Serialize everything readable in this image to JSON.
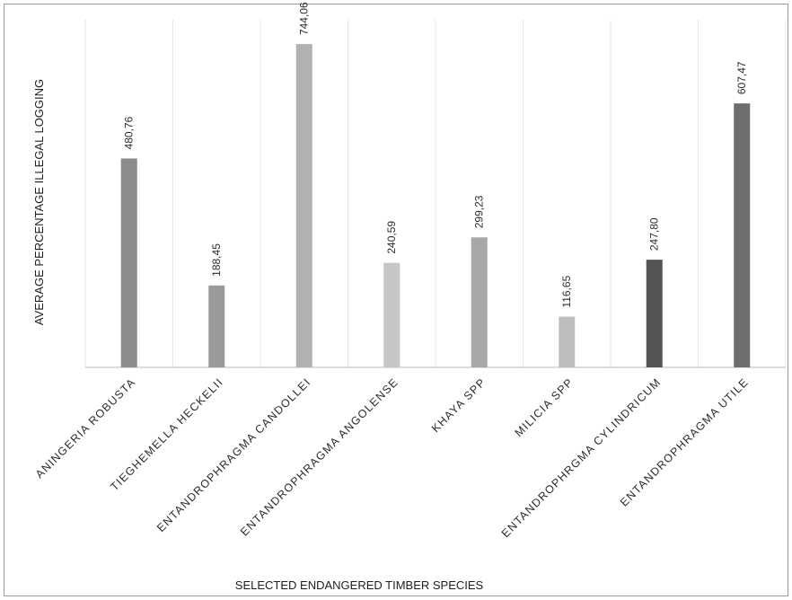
{
  "chart_data": {
    "type": "bar",
    "title": "",
    "xlabel": "SELECTED ENDANGERED TIMBER SPECIES",
    "ylabel": "AVERAGE PERCENTAGE ILLEGAL LOGGING",
    "categories": [
      "ANINGERIA ROBUSTA",
      "TIEGHEMELLA HECKELII",
      "ENTANDROPHRAGMA CANDOLLEI",
      "ENTANDROPHRAGMA ANGOLENSE",
      "KHAYA SPP",
      "MILICIA SPP",
      "ENTANDROPHRGMA CYLINDRICUM",
      "ENTANDROPHRAGMA UTILE"
    ],
    "values": [
      480.76,
      188.45,
      744.06,
      240.59,
      299.23,
      116.65,
      247.8,
      607.47
    ],
    "value_labels": [
      "480,76",
      "188,45",
      "744,06",
      "240,59",
      "299,23",
      "116,65",
      "247,80",
      "607,47"
    ],
    "bar_colors": [
      "#8c8c8e",
      "#9a9a9c",
      "#b2b2b4",
      "#c6c6c8",
      "#a8a8aa",
      "#bebec0",
      "#555557",
      "#6e6e70"
    ],
    "ylim": [
      0,
      800
    ],
    "grid": "vertical",
    "legend": "none",
    "axis_color": "#c8c8c8",
    "grid_color": "#e6e6e6"
  }
}
